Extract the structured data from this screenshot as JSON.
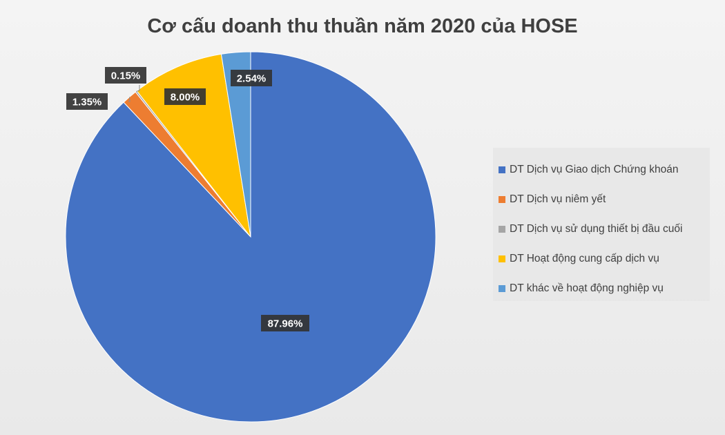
{
  "chart_data": {
    "type": "pie",
    "title": "Cơ cấu doanh thu thuần năm 2020 của HOSE",
    "legend_position": "right",
    "slices": [
      {
        "name": "DT Dịch vụ Giao dịch Chứng khoán",
        "value": 87.96,
        "label": "87.96%",
        "color": "#4472C4"
      },
      {
        "name": "DT Dịch vụ niêm yết",
        "value": 1.35,
        "label": "1.35%",
        "color": "#ED7D31"
      },
      {
        "name": "DT Dịch vụ sử dụng thiết bị đầu cuối",
        "value": 0.15,
        "label": "0.15%",
        "color": "#A5A5A5"
      },
      {
        "name": "DT Hoạt động cung cấp dịch vụ",
        "value": 8.0,
        "label": "8.00%",
        "color": "#FFC000"
      },
      {
        "name": "DT khác về hoạt động nghiệp vụ",
        "value": 2.54,
        "label": "2.54%",
        "color": "#5B9BD5"
      }
    ]
  }
}
